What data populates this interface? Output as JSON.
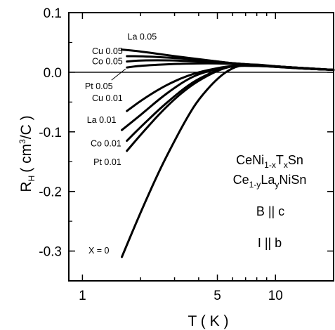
{
  "chart_data": {
    "type": "line",
    "title": "",
    "xlabel": "T ( K )",
    "ylabel": "R",
    "ylabel_sub": "H",
    "ylabel_units": "( cm",
    "ylabel_units_sup": "3",
    "ylabel_units_end": "/C )",
    "x_scale": "log",
    "xlim": [
      0.85,
      20
    ],
    "ylim": [
      -0.35,
      0.1
    ],
    "x_ticks": [
      1,
      5,
      10
    ],
    "x_tick_labels": [
      "1",
      "5",
      "10"
    ],
    "y_ticks": [
      0.1,
      0.0,
      -0.1,
      -0.2,
      -0.3
    ],
    "y_tick_labels": [
      "0.1",
      "0.0",
      "-0.1",
      "-0.2",
      "-0.3"
    ],
    "reference_line_y": 0.0,
    "grid": false,
    "series": [
      {
        "name": "La 0.05",
        "x": [
          1.6,
          2.0,
          3.0,
          4.0,
          5.0,
          6.0,
          8.0,
          10.0,
          14.0,
          20.0
        ],
        "y": [
          0.038,
          0.035,
          0.027,
          0.022,
          0.018,
          0.015,
          0.012,
          0.01,
          0.007,
          0.004
        ]
      },
      {
        "name": "Cu 0.05",
        "x": [
          1.7,
          2.0,
          3.0,
          4.0,
          5.0,
          6.0,
          8.0,
          10.0,
          14.0,
          20.0
        ],
        "y": [
          0.027,
          0.027,
          0.024,
          0.021,
          0.018,
          0.015,
          0.012,
          0.01,
          0.007,
          0.004
        ]
      },
      {
        "name": "Co 0.05",
        "x": [
          1.7,
          2.0,
          3.0,
          4.0,
          5.0,
          6.0,
          8.0,
          10.0,
          14.0,
          20.0
        ],
        "y": [
          0.018,
          0.02,
          0.02,
          0.018,
          0.017,
          0.015,
          0.012,
          0.01,
          0.007,
          0.004
        ]
      },
      {
        "name": "Pt 0.05",
        "x": [
          1.7,
          2.0,
          3.0,
          4.0,
          5.0,
          6.0,
          8.0,
          10.0,
          14.0,
          20.0
        ],
        "y": [
          0.008,
          0.011,
          0.014,
          0.015,
          0.015,
          0.014,
          0.012,
          0.01,
          0.007,
          0.004
        ]
      },
      {
        "name": "Cu 0.01",
        "x": [
          1.7,
          2.0,
          2.5,
          3.0,
          3.5,
          4.0,
          5.0,
          6.0,
          8.0,
          10.0,
          14.0,
          20.0
        ],
        "y": [
          -0.065,
          -0.048,
          -0.028,
          -0.015,
          -0.006,
          0.0,
          0.007,
          0.011,
          0.011,
          0.009,
          0.006,
          0.004
        ]
      },
      {
        "name": "La 0.01",
        "x": [
          1.6,
          2.0,
          2.5,
          3.0,
          3.5,
          4.0,
          5.0,
          6.0,
          8.0,
          10.0,
          14.0,
          20.0
        ],
        "y": [
          -0.097,
          -0.072,
          -0.045,
          -0.026,
          -0.012,
          -0.003,
          0.006,
          0.011,
          0.011,
          0.009,
          0.006,
          0.004
        ]
      },
      {
        "name": "Co 0.01",
        "x": [
          1.7,
          2.0,
          2.5,
          3.0,
          3.5,
          4.0,
          5.0,
          6.0,
          8.0,
          10.0,
          14.0,
          20.0
        ],
        "y": [
          -0.115,
          -0.092,
          -0.062,
          -0.04,
          -0.023,
          -0.011,
          0.004,
          0.011,
          0.012,
          0.01,
          0.006,
          0.004
        ]
      },
      {
        "name": "Pt 0.01",
        "x": [
          1.7,
          2.0,
          2.5,
          3.0,
          3.5,
          4.0,
          5.0,
          6.0,
          8.0,
          10.0,
          14.0,
          20.0
        ],
        "y": [
          -0.132,
          -0.105,
          -0.07,
          -0.045,
          -0.027,
          -0.014,
          0.003,
          0.011,
          0.012,
          0.01,
          0.006,
          0.004
        ]
      },
      {
        "name": "X = 0",
        "x": [
          1.6,
          2.0,
          2.5,
          3.0,
          3.5,
          4.0,
          5.0,
          6.0,
          7.0,
          8.0,
          10.0,
          14.0,
          20.0
        ],
        "y": [
          -0.31,
          -0.235,
          -0.165,
          -0.115,
          -0.075,
          -0.045,
          -0.01,
          0.008,
          0.013,
          0.013,
          0.01,
          0.006,
          0.004
        ]
      }
    ],
    "annotations": {
      "formula1": {
        "base": "CeNi",
        "sub1": "1-x",
        "mid": "T",
        "sub2": "x",
        "end": "Sn"
      },
      "formula2": {
        "base": "Ce",
        "sub1": "1-y",
        "mid": "La",
        "sub2": "y",
        "end": "NiSn"
      },
      "field": "B || c",
      "current": "I || b"
    }
  }
}
